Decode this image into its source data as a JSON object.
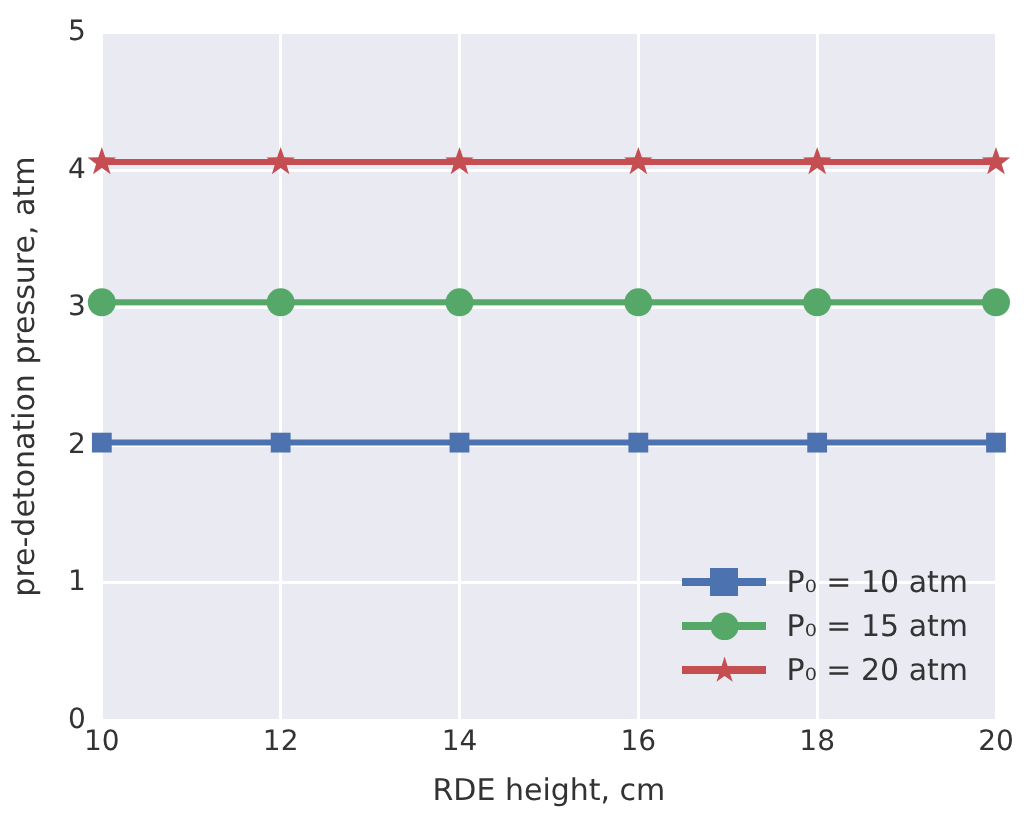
{
  "chart_data": {
    "type": "line",
    "xlabel": "RDE height, cm",
    "ylabel": "pre-detonation pressure, atm",
    "x": [
      10,
      12,
      14,
      16,
      18,
      20
    ],
    "series": [
      {
        "name": "P₀ = 10 atm",
        "color": "#4c72b0",
        "marker": "square",
        "values": [
          2.02,
          2.02,
          2.02,
          2.02,
          2.02,
          2.02
        ]
      },
      {
        "name": "P₀ = 15 atm",
        "color": "#55a868",
        "marker": "circle",
        "values": [
          3.04,
          3.04,
          3.04,
          3.04,
          3.04,
          3.04
        ]
      },
      {
        "name": "P₀ = 20 atm",
        "color": "#c44e52",
        "marker": "star",
        "values": [
          4.06,
          4.06,
          4.06,
          4.06,
          4.06,
          4.06
        ]
      }
    ],
    "xlim": [
      10,
      20
    ],
    "xticks": [
      10,
      12,
      14,
      16,
      18,
      20
    ],
    "ylim": [
      0,
      5
    ],
    "yticks": [
      0,
      1,
      2,
      3,
      4,
      5
    ],
    "grid": true,
    "legend": "bottom right",
    "line_style": "solid"
  }
}
